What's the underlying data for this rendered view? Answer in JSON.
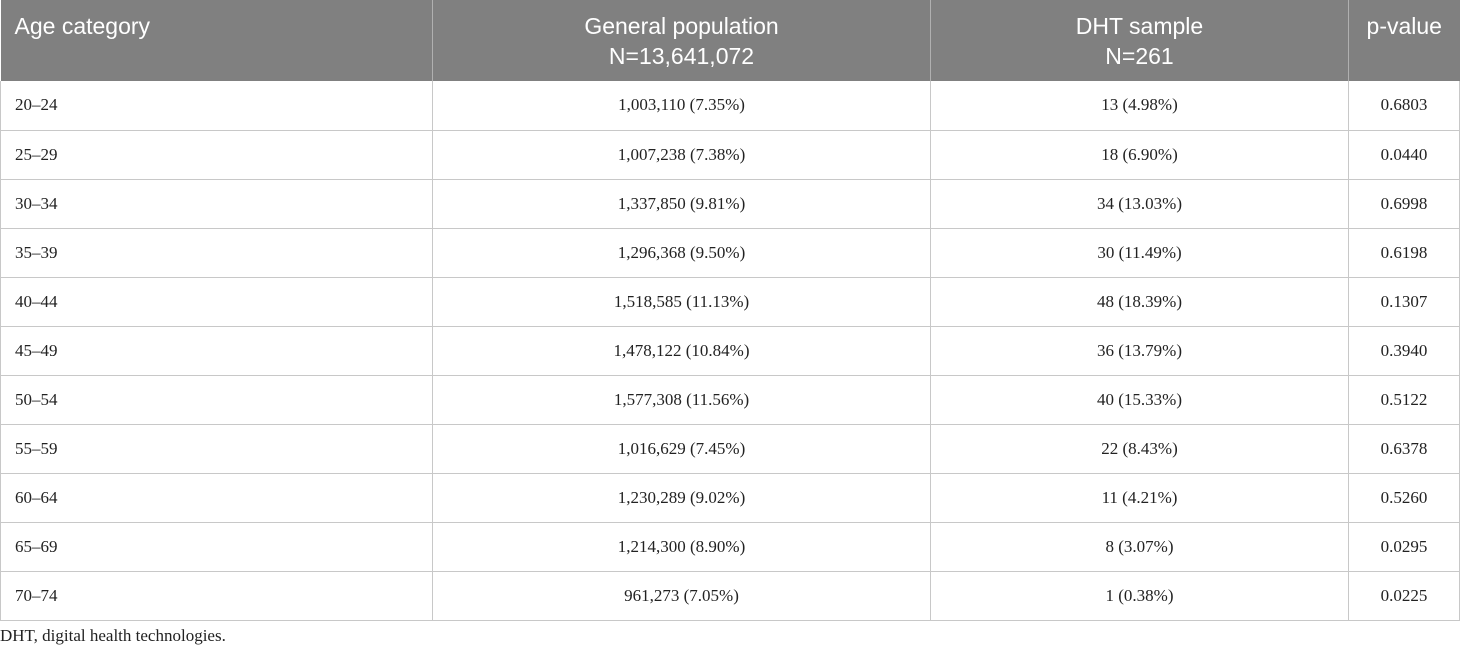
{
  "table": {
    "headers": [
      {
        "lines": [
          "Age category"
        ]
      },
      {
        "lines": [
          "General population",
          "N=13,641,072"
        ]
      },
      {
        "lines": [
          "DHT sample",
          "N=261"
        ]
      },
      {
        "lines": [
          "p-value"
        ]
      }
    ],
    "rows": [
      {
        "age": "20–24",
        "general": "1,003,110 (7.35%)",
        "dht": "13 (4.98%)",
        "p": "0.6803"
      },
      {
        "age": "25–29",
        "general": "1,007,238 (7.38%)",
        "dht": "18 (6.90%)",
        "p": "0.0440"
      },
      {
        "age": "30–34",
        "general": "1,337,850 (9.81%)",
        "dht": "34 (13.03%)",
        "p": "0.6998"
      },
      {
        "age": "35–39",
        "general": "1,296,368 (9.50%)",
        "dht": "30 (11.49%)",
        "p": "0.6198"
      },
      {
        "age": "40–44",
        "general": "1,518,585 (11.13%)",
        "dht": "48 (18.39%)",
        "p": "0.1307"
      },
      {
        "age": "45–49",
        "general": "1,478,122 (10.84%)",
        "dht": "36 (13.79%)",
        "p": "0.3940"
      },
      {
        "age": "50–54",
        "general": "1,577,308 (11.56%)",
        "dht": "40 (15.33%)",
        "p": "0.5122"
      },
      {
        "age": "55–59",
        "general": "1,016,629 (7.45%)",
        "dht": "22 (8.43%)",
        "p": "0.6378"
      },
      {
        "age": "60–64",
        "general": "1,230,289 (9.02%)",
        "dht": "11 (4.21%)",
        "p": "0.5260"
      },
      {
        "age": "65–69",
        "general": "1,214,300 (8.90%)",
        "dht": "8 (3.07%)",
        "p": "0.0295"
      },
      {
        "age": "70–74",
        "general": "961,273 (7.05%)",
        "dht": "1 (0.38%)",
        "p": "0.0225"
      }
    ]
  },
  "footnote": "DHT, digital health technologies.",
  "colors": {
    "header_bg": "#808080",
    "header_text": "#ffffff",
    "grid": "#c8c8c8"
  }
}
